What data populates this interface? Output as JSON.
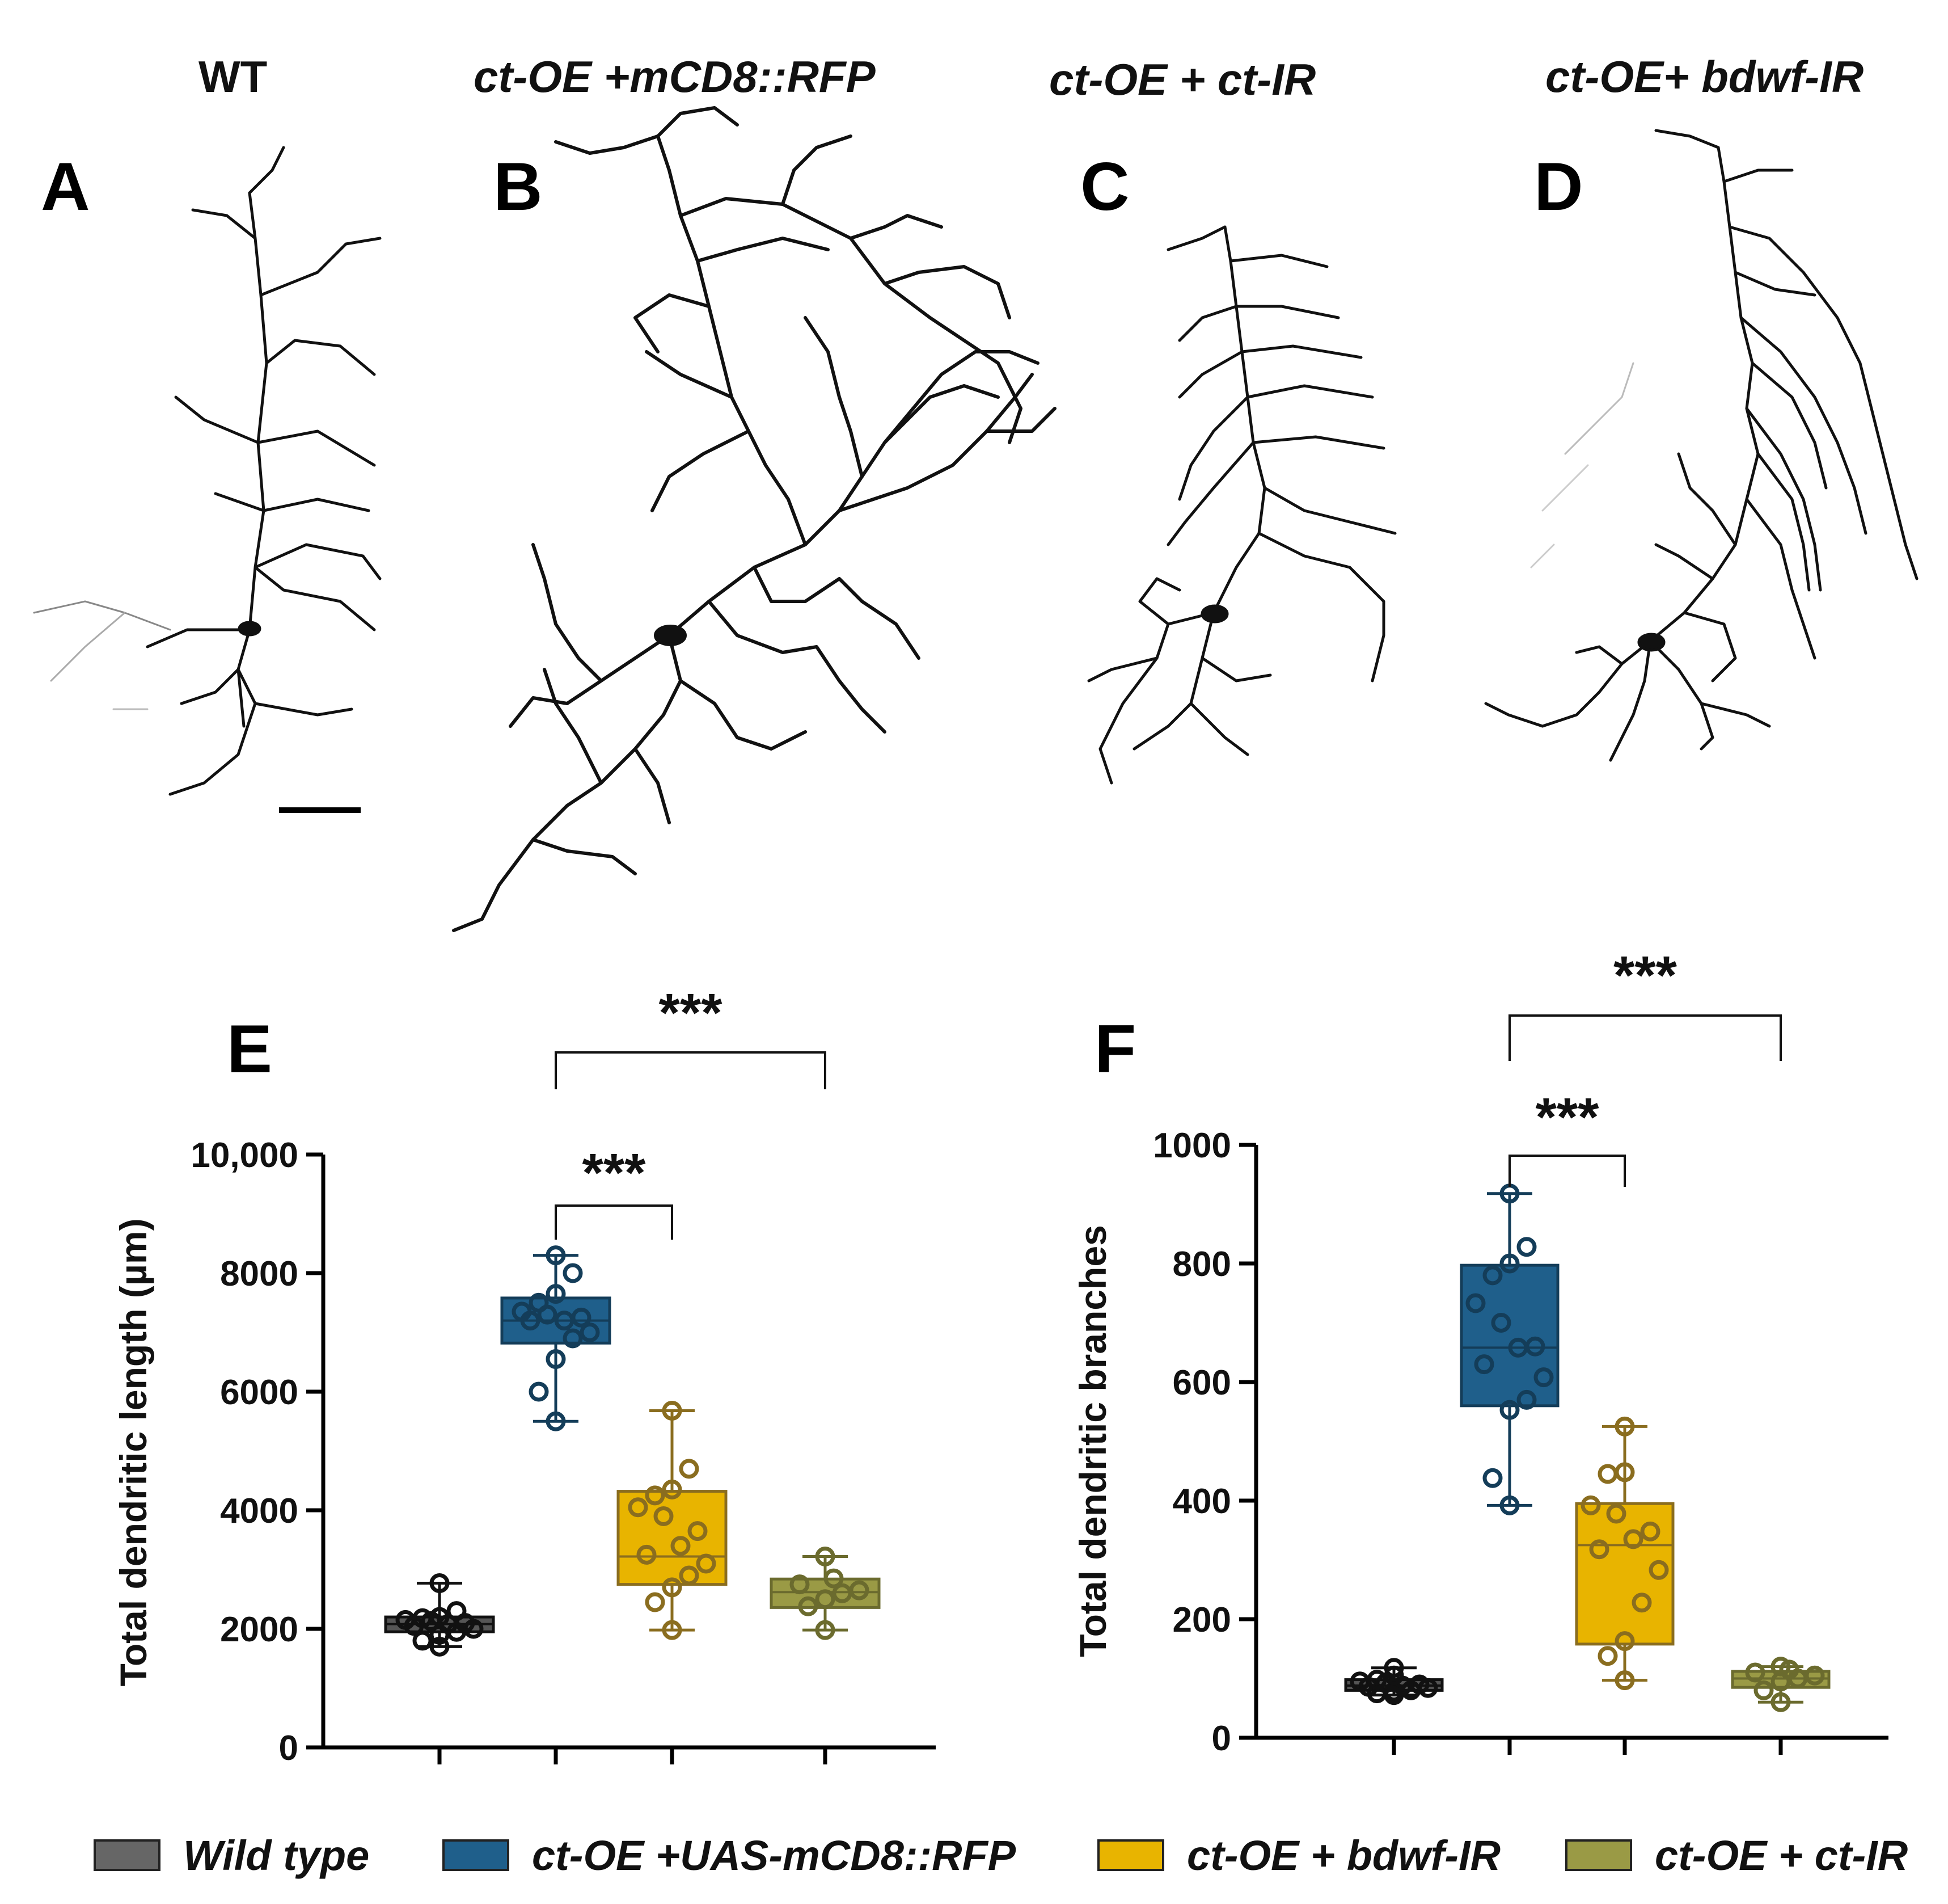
{
  "panels": {
    "A": {
      "letter": "A",
      "title": "WT"
    },
    "B": {
      "letter": "B",
      "title": "ct-OE +mCD8::RFP"
    },
    "C": {
      "letter": "C",
      "title": "ct-OE + ct-IR"
    },
    "D": {
      "letter": "D",
      "title": "ct-OE+ bdwf-IR"
    }
  },
  "chart_data": [
    {
      "type": "box",
      "panel": "E",
      "ylabel": "Total dendritic length (µm)",
      "ylim": [
        0,
        10000
      ],
      "yticks": [
        0,
        2000,
        4000,
        6000,
        8000,
        10000
      ],
      "ytick_labels": [
        "0",
        "2000",
        "4000",
        "6000",
        "8000",
        "10,000"
      ],
      "categories": [
        "Wild type",
        "ct-OE +UAS-mCD8::RFP",
        "ct-OE + bdwf-IR",
        "ct-OE + ct-IR"
      ],
      "series": [
        {
          "name": "Wild type",
          "color": "#555555",
          "edge": "#111111",
          "min": 1700,
          "q1": 1950,
          "median": 2080,
          "q3": 2200,
          "max": 2770,
          "points": [
            1700,
            1800,
            1900,
            1950,
            2000,
            2050,
            2080,
            2100,
            2130,
            2150,
            2180,
            2200,
            2300,
            2770
          ]
        },
        {
          "name": "ct-OE +UAS-mCD8::RFP",
          "color": "#1f5f8b",
          "edge": "#143d59",
          "min": 5500,
          "q1": 6820,
          "median": 7200,
          "q3": 7580,
          "max": 8300,
          "points": [
            5500,
            6000,
            6550,
            6900,
            7000,
            7200,
            7200,
            7250,
            7300,
            7350,
            7500,
            7650,
            8000,
            8300
          ]
        },
        {
          "name": "ct-OE + bdwf-IR",
          "color": "#e8b400",
          "edge": "#8a6d1f",
          "min": 1980,
          "q1": 2750,
          "median": 3220,
          "q3": 4320,
          "max": 5680,
          "points": [
            1980,
            2450,
            2700,
            2900,
            3100,
            3250,
            3400,
            3650,
            3900,
            4050,
            4250,
            4350,
            4700,
            5680
          ]
        },
        {
          "name": "ct-OE + ct-IR",
          "color": "#9a9a45",
          "edge": "#6b6b2e",
          "min": 1980,
          "q1": 2360,
          "median": 2620,
          "q3": 2840,
          "max": 3220,
          "points": [
            1980,
            2380,
            2500,
            2600,
            2650,
            2750,
            2850,
            3220
          ]
        }
      ],
      "significance": [
        {
          "label": "***",
          "from": 1,
          "to": 2
        },
        {
          "label": "***",
          "from": 1,
          "to": 3
        }
      ]
    },
    {
      "type": "box",
      "panel": "F",
      "ylabel": "Total dendritic branches",
      "ylim": [
        0,
        1000
      ],
      "yticks": [
        0,
        200,
        400,
        600,
        800,
        1000
      ],
      "ytick_labels": [
        "0",
        "200",
        "400",
        "600",
        "800",
        "1000"
      ],
      "categories": [
        "Wild type",
        "ct-OE +UAS-mCD8::RFP",
        "ct-OE + bdwf-IR",
        "ct-OE + ct-IR"
      ],
      "series": [
        {
          "name": "Wild type",
          "color": "#555555",
          "edge": "#111111",
          "min": 72,
          "q1": 80,
          "median": 88,
          "q3": 98,
          "max": 118,
          "points": [
            72,
            75,
            78,
            80,
            84,
            86,
            88,
            90,
            92,
            95,
            98,
            105,
            118
          ]
        },
        {
          "name": "ct-OE +UAS-mCD8::RFP",
          "color": "#1f5f8b",
          "edge": "#143d59",
          "min": 392,
          "q1": 560,
          "median": 658,
          "q3": 797,
          "max": 918,
          "points": [
            392,
            438,
            553,
            570,
            608,
            630,
            658,
            660,
            700,
            733,
            780,
            800,
            828,
            918
          ]
        },
        {
          "name": "ct-OE + bdwf-IR",
          "color": "#e8b400",
          "edge": "#8a6d1f",
          "min": 97,
          "q1": 158,
          "median": 325,
          "q3": 395,
          "max": 525,
          "points": [
            97,
            138,
            163,
            228,
            283,
            318,
            335,
            348,
            378,
            392,
            445,
            448,
            525
          ]
        },
        {
          "name": "ct-OE + ct-IR",
          "color": "#9a9a45",
          "edge": "#6b6b2e",
          "min": 60,
          "q1": 85,
          "median": 100,
          "q3": 112,
          "max": 120,
          "points": [
            60,
            80,
            95,
            100,
            105,
            110,
            115,
            120
          ]
        }
      ],
      "significance": [
        {
          "label": "***",
          "from": 1,
          "to": 2
        },
        {
          "label": "***",
          "from": 1,
          "to": 3
        }
      ]
    }
  ],
  "legend": [
    {
      "label": "Wild type",
      "color": "#666666"
    },
    {
      "label": "ct-OE +UAS-mCD8::RFP",
      "color": "#1f5f8b"
    },
    {
      "label": "ct-OE + bdwf-IR",
      "color": "#e8b400"
    },
    {
      "label": "ct-OE + ct-IR",
      "color": "#9a9a45"
    }
  ]
}
